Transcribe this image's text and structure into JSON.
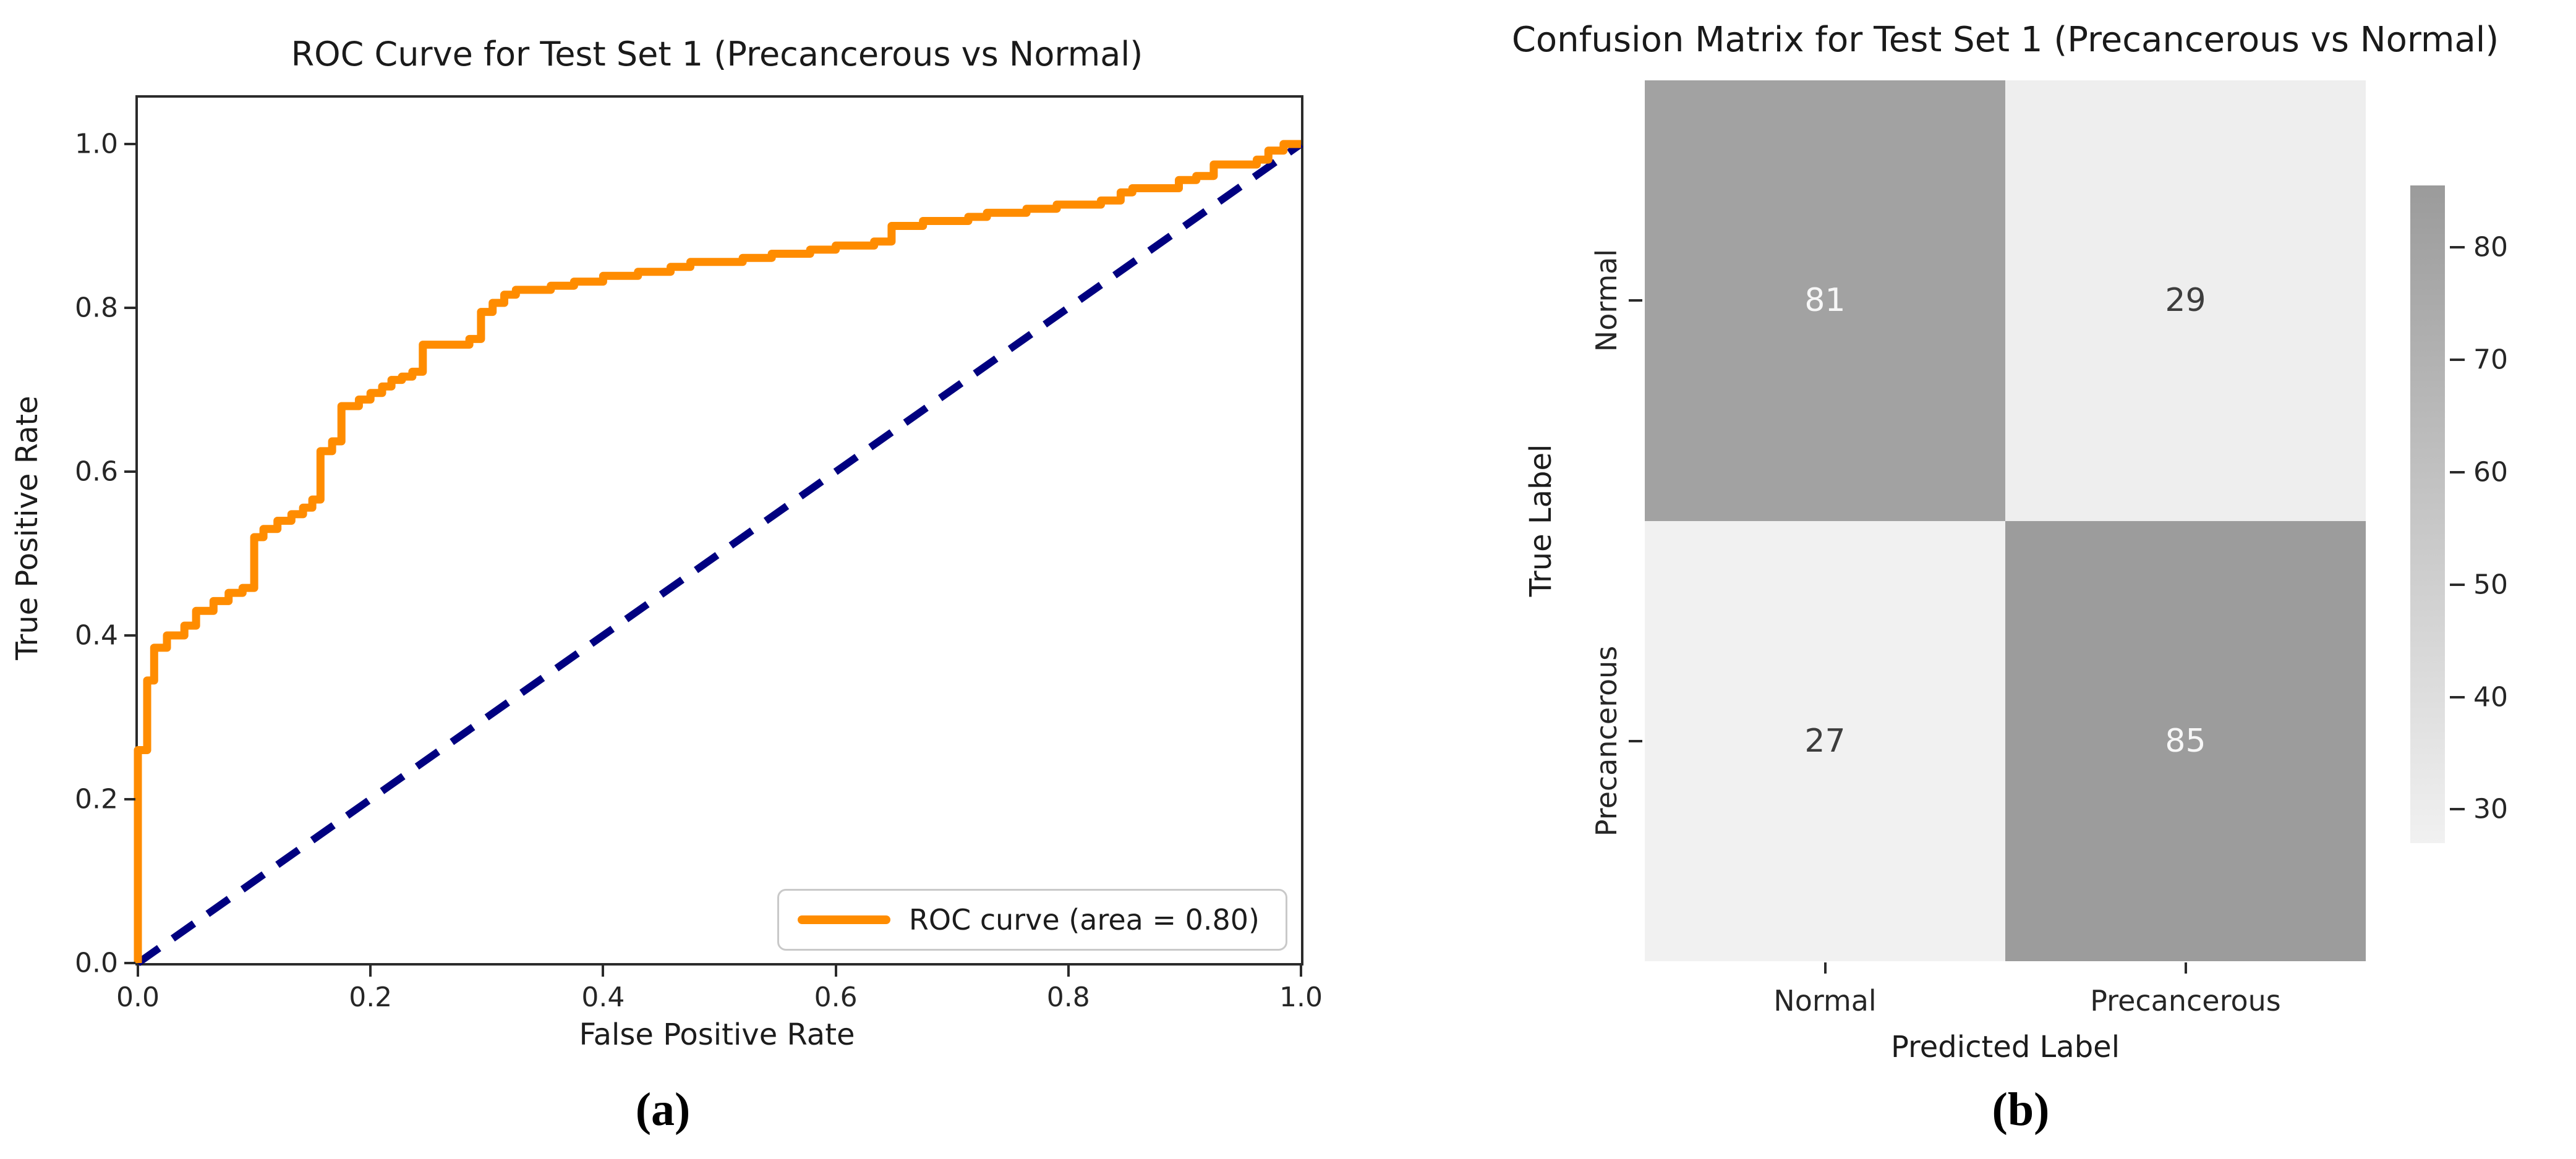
{
  "colors": {
    "roc_curve": "#FF8C00",
    "diagonal": "#000080",
    "spine": "#2b2b2b",
    "title_text": "#1a1a1a",
    "tick_text": "#262626",
    "legend_border": "#c9c9c9",
    "heat_light": "#f1f1f1",
    "heat_dark": "#9b9b9b",
    "cell_text_on_dark": "#f7f7f7",
    "cell_text_on_light": "#3d3d3d"
  },
  "figure": {
    "caption_a": "(a)",
    "caption_b": "(b)"
  },
  "chart_data": [
    {
      "id": "roc",
      "type": "line",
      "title": "ROC Curve for Test Set 1 (Precancerous vs Normal)",
      "xlabel": "False Positive Rate",
      "ylabel": "True Positive Rate",
      "xlim": [
        0.0,
        1.0
      ],
      "ylim": [
        0.0,
        1.057
      ],
      "grid": false,
      "x_ticks": [
        "0.0",
        "0.2",
        "0.4",
        "0.6",
        "0.8",
        "1.0"
      ],
      "y_ticks": [
        "0.0",
        "0.2",
        "0.4",
        "0.6",
        "0.8",
        "1.0"
      ],
      "legend": {
        "label": "ROC curve (area = 0.80)",
        "position": "lower right"
      },
      "auc": 0.8,
      "series": [
        {
          "name": "ROC curve",
          "style": "solid-step",
          "color_key": "roc_curve"
        },
        {
          "name": "chance diagonal",
          "style": "dashed",
          "color_key": "diagonal"
        }
      ],
      "diagonal": [
        [
          0,
          0
        ],
        [
          1,
          1
        ]
      ],
      "roc_points": [
        [
          0,
          0
        ],
        [
          0,
          0.26
        ],
        [
          0.008,
          0.26
        ],
        [
          0.008,
          0.345
        ],
        [
          0.014,
          0.345
        ],
        [
          0.014,
          0.385
        ],
        [
          0.025,
          0.385
        ],
        [
          0.025,
          0.4
        ],
        [
          0.04,
          0.4
        ],
        [
          0.04,
          0.412
        ],
        [
          0.05,
          0.412
        ],
        [
          0.05,
          0.43
        ],
        [
          0.065,
          0.43
        ],
        [
          0.065,
          0.442
        ],
        [
          0.078,
          0.442
        ],
        [
          0.078,
          0.452
        ],
        [
          0.09,
          0.452
        ],
        [
          0.09,
          0.458
        ],
        [
          0.1,
          0.458
        ],
        [
          0.1,
          0.52
        ],
        [
          0.108,
          0.52
        ],
        [
          0.108,
          0.53
        ],
        [
          0.12,
          0.53
        ],
        [
          0.12,
          0.54
        ],
        [
          0.132,
          0.54
        ],
        [
          0.132,
          0.548
        ],
        [
          0.142,
          0.548
        ],
        [
          0.142,
          0.556
        ],
        [
          0.15,
          0.556
        ],
        [
          0.15,
          0.566
        ],
        [
          0.157,
          0.566
        ],
        [
          0.157,
          0.625
        ],
        [
          0.167,
          0.625
        ],
        [
          0.167,
          0.637
        ],
        [
          0.175,
          0.637
        ],
        [
          0.175,
          0.68
        ],
        [
          0.19,
          0.68
        ],
        [
          0.19,
          0.688
        ],
        [
          0.2,
          0.688
        ],
        [
          0.2,
          0.696
        ],
        [
          0.21,
          0.696
        ],
        [
          0.21,
          0.704
        ],
        [
          0.218,
          0.704
        ],
        [
          0.218,
          0.712
        ],
        [
          0.227,
          0.712
        ],
        [
          0.227,
          0.716
        ],
        [
          0.236,
          0.716
        ],
        [
          0.236,
          0.722
        ],
        [
          0.245,
          0.722
        ],
        [
          0.245,
          0.755
        ],
        [
          0.285,
          0.755
        ],
        [
          0.285,
          0.762
        ],
        [
          0.295,
          0.762
        ],
        [
          0.295,
          0.795
        ],
        [
          0.305,
          0.795
        ],
        [
          0.305,
          0.806
        ],
        [
          0.315,
          0.806
        ],
        [
          0.315,
          0.816
        ],
        [
          0.325,
          0.816
        ],
        [
          0.325,
          0.822
        ],
        [
          0.355,
          0.822
        ],
        [
          0.355,
          0.827
        ],
        [
          0.375,
          0.827
        ],
        [
          0.375,
          0.832
        ],
        [
          0.4,
          0.832
        ],
        [
          0.4,
          0.839
        ],
        [
          0.43,
          0.839
        ],
        [
          0.43,
          0.844
        ],
        [
          0.458,
          0.844
        ],
        [
          0.458,
          0.85
        ],
        [
          0.475,
          0.85
        ],
        [
          0.475,
          0.856
        ],
        [
          0.52,
          0.856
        ],
        [
          0.52,
          0.861
        ],
        [
          0.545,
          0.861
        ],
        [
          0.545,
          0.866
        ],
        [
          0.578,
          0.866
        ],
        [
          0.578,
          0.871
        ],
        [
          0.6,
          0.871
        ],
        [
          0.6,
          0.876
        ],
        [
          0.633,
          0.876
        ],
        [
          0.633,
          0.881
        ],
        [
          0.648,
          0.881
        ],
        [
          0.648,
          0.9
        ],
        [
          0.675,
          0.9
        ],
        [
          0.675,
          0.906
        ],
        [
          0.714,
          0.906
        ],
        [
          0.714,
          0.911
        ],
        [
          0.73,
          0.911
        ],
        [
          0.73,
          0.916
        ],
        [
          0.764,
          0.916
        ],
        [
          0.764,
          0.921
        ],
        [
          0.79,
          0.921
        ],
        [
          0.79,
          0.926
        ],
        [
          0.828,
          0.926
        ],
        [
          0.828,
          0.931
        ],
        [
          0.845,
          0.931
        ],
        [
          0.845,
          0.941
        ],
        [
          0.855,
          0.941
        ],
        [
          0.855,
          0.946
        ],
        [
          0.895,
          0.946
        ],
        [
          0.895,
          0.956
        ],
        [
          0.91,
          0.956
        ],
        [
          0.91,
          0.961
        ],
        [
          0.925,
          0.961
        ],
        [
          0.925,
          0.975
        ],
        [
          0.962,
          0.975
        ],
        [
          0.962,
          0.981
        ],
        [
          0.972,
          0.981
        ],
        [
          0.972,
          0.992
        ],
        [
          0.985,
          0.992
        ],
        [
          0.985,
          1.0
        ],
        [
          1.0,
          1.0
        ]
      ]
    },
    {
      "id": "confusion",
      "type": "heatmap",
      "title": "Confusion Matrix for Test Set 1 (Precancerous vs Normal)",
      "xlabel": "Predicted Label",
      "ylabel": "True Label",
      "row_labels": [
        "Normal",
        "Precancerous"
      ],
      "col_labels": [
        "Normal",
        "Precancerous"
      ],
      "matrix": [
        [
          81,
          29
        ],
        [
          27,
          85
        ]
      ],
      "colorbar": {
        "vmin": 27,
        "vmax": 85.5,
        "ticks": [
          80,
          70,
          60,
          50,
          40,
          30
        ],
        "position": "right"
      }
    }
  ]
}
